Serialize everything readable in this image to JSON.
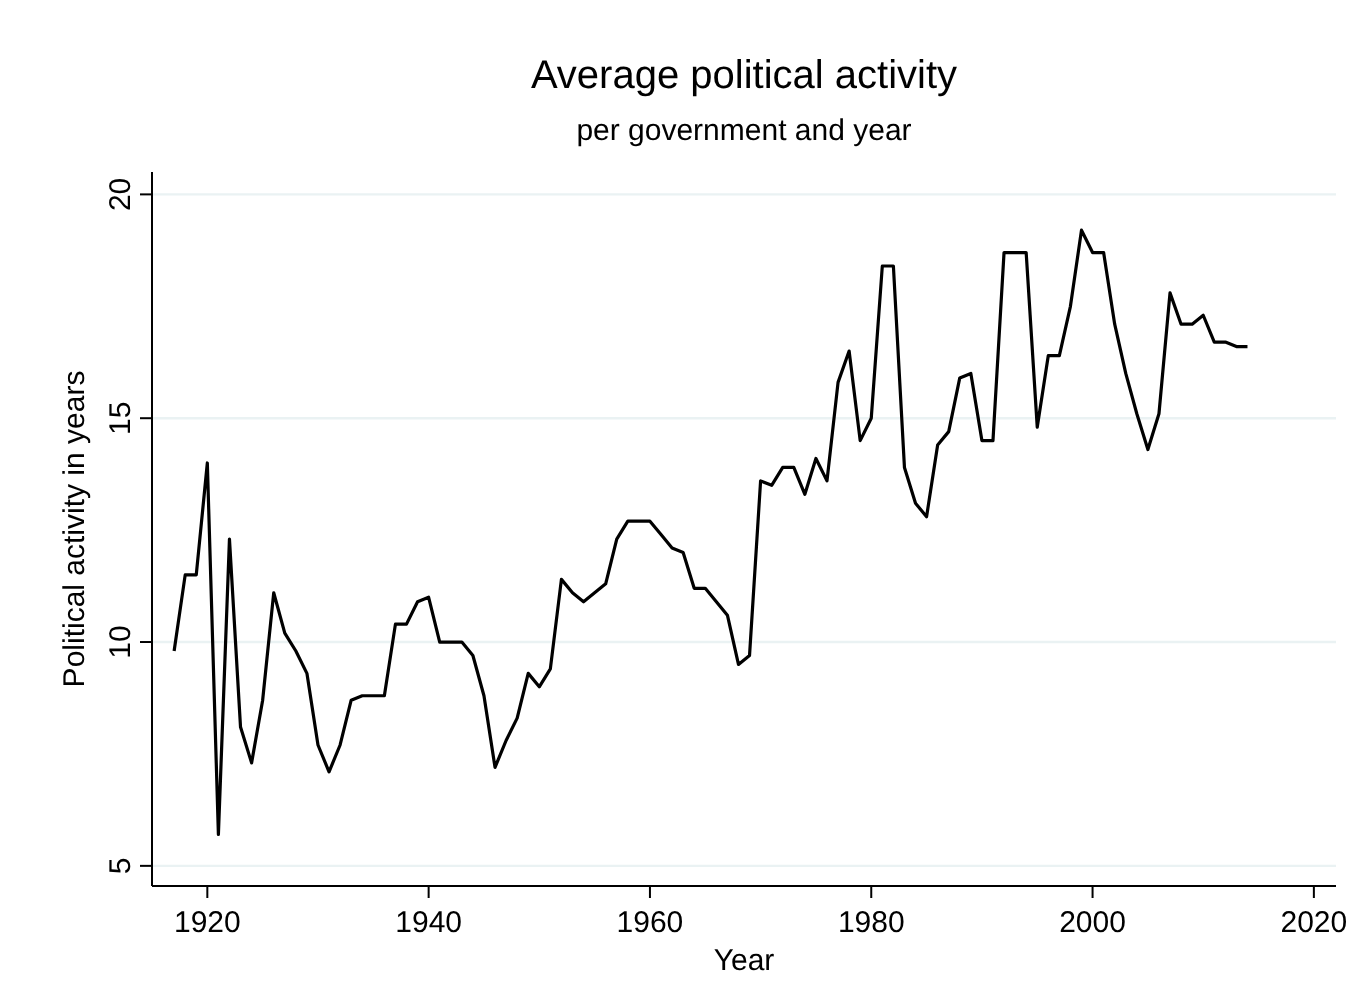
{
  "chart_data": {
    "type": "line",
    "title": "Average political activity",
    "subtitle": "per government and year",
    "xlabel": "Year",
    "ylabel": "Political activity in years",
    "x": [
      1917,
      1918,
      1919,
      1920,
      1921,
      1922,
      1923,
      1924,
      1925,
      1926,
      1927,
      1928,
      1929,
      1930,
      1931,
      1932,
      1933,
      1934,
      1935,
      1936,
      1937,
      1938,
      1939,
      1940,
      1941,
      1942,
      1943,
      1944,
      1945,
      1946,
      1947,
      1948,
      1949,
      1950,
      1951,
      1952,
      1953,
      1954,
      1955,
      1956,
      1957,
      1958,
      1959,
      1960,
      1961,
      1962,
      1963,
      1964,
      1965,
      1966,
      1967,
      1968,
      1969,
      1970,
      1971,
      1972,
      1973,
      1974,
      1975,
      1976,
      1977,
      1978,
      1979,
      1980,
      1981,
      1982,
      1983,
      1984,
      1985,
      1986,
      1987,
      1988,
      1989,
      1990,
      1991,
      1992,
      1993,
      1994,
      1995,
      1996,
      1997,
      1998,
      1999,
      2000,
      2001,
      2002,
      2003,
      2004,
      2005,
      2006,
      2007,
      2008,
      2009,
      2010,
      2011,
      2012,
      2013,
      2014
    ],
    "series": [
      {
        "color": "#000000",
        "values": [
          9.8,
          11.5,
          11.5,
          14.0,
          5.7,
          12.3,
          8.1,
          7.3,
          8.7,
          11.1,
          10.2,
          9.8,
          9.3,
          7.7,
          7.1,
          7.7,
          8.7,
          8.8,
          8.8,
          8.8,
          10.4,
          10.4,
          10.9,
          11.0,
          10.0,
          10.0,
          10.0,
          9.7,
          8.8,
          7.2,
          7.8,
          8.3,
          9.3,
          9.0,
          9.4,
          11.4,
          11.1,
          10.9,
          11.1,
          11.3,
          12.3,
          12.7,
          12.7,
          12.7,
          12.4,
          12.1,
          12.0,
          11.2,
          11.2,
          10.9,
          10.6,
          9.5,
          9.7,
          13.6,
          13.5,
          13.9,
          13.9,
          13.3,
          14.1,
          13.6,
          15.8,
          16.5,
          14.5,
          15.0,
          18.4,
          18.4,
          13.9,
          13.1,
          12.8,
          14.4,
          14.7,
          15.9,
          16.0,
          14.5,
          14.5,
          18.7,
          18.7,
          18.7,
          14.8,
          16.4,
          16.4,
          17.5,
          19.2,
          18.7,
          18.7,
          17.1,
          16.0,
          15.1,
          14.3,
          15.1,
          17.8,
          17.1,
          17.1,
          17.3,
          16.7,
          16.7,
          16.6,
          16.6
        ]
      }
    ],
    "xlim": [
      1915,
      2022
    ],
    "xticks": [
      1920,
      1940,
      1960,
      1980,
      2000,
      2020
    ],
    "ylim": [
      4.55,
      20.5
    ],
    "yticks": [
      5,
      10,
      15,
      20
    ],
    "grid": "y",
    "marker": "none",
    "line_style": "solid"
  }
}
